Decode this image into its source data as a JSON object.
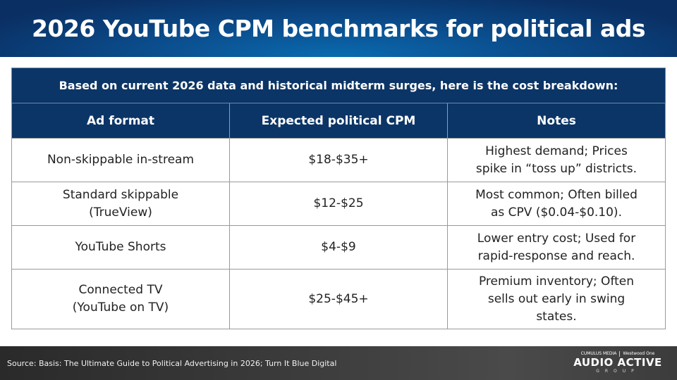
{
  "title": "2026 YouTube CPM benchmarks for political ads",
  "table": {
    "caption": "Based on current 2026 data and historical midterm surges, here is the cost breakdown:",
    "headers": [
      "Ad format",
      "Expected political CPM",
      "Notes"
    ],
    "rows": [
      {
        "format_lines": [
          "Non-skippable in-stream"
        ],
        "cpm": "$18-$35+",
        "notes_lines": [
          "Highest demand; Prices",
          "spike in “toss up” districts."
        ]
      },
      {
        "format_lines": [
          "Standard skippable",
          "(TrueView)"
        ],
        "cpm": "$12-$25",
        "notes_lines": [
          "Most common; Often billed",
          "as CPV ($0.04-$0.10)."
        ]
      },
      {
        "format_lines": [
          "YouTube Shorts"
        ],
        "cpm": "$4-$9",
        "notes_lines": [
          "Lower entry cost; Used for",
          "rapid-response and reach."
        ]
      },
      {
        "format_lines": [
          "Connected TV",
          "(YouTube on TV)"
        ],
        "cpm": "$25-$45+",
        "notes_lines": [
          "Premium inventory; Often",
          "sells out early in swing",
          "states."
        ]
      }
    ]
  },
  "footer": {
    "source": "Source: Basis: The Ultimate Guide to Political Advertising in 2026; Turn It Blue Digital",
    "logo": {
      "partner_left": "CUMULUS MEDIA",
      "partner_right": "Westwood One",
      "name": "AUDIO ACTIVE",
      "sub": "GROUP"
    }
  },
  "colors": {
    "header_navy": "#0b3566",
    "title_blue": "#0b4f8f",
    "footer_dark": "#333333"
  }
}
